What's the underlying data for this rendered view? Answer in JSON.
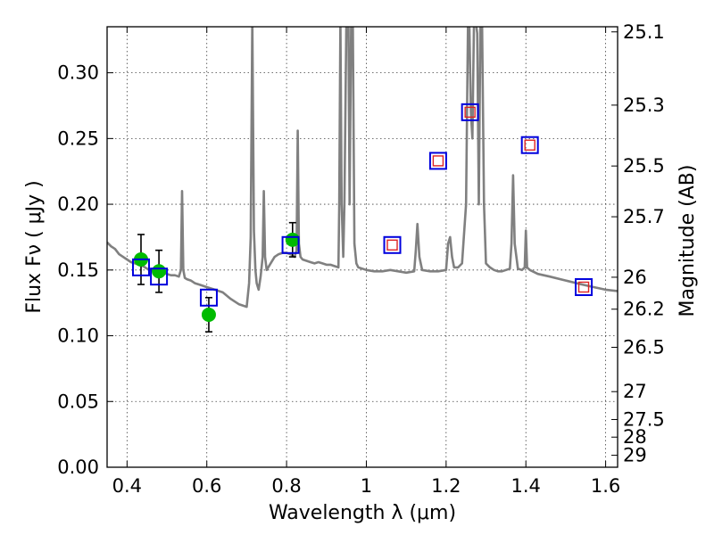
{
  "chart_data": {
    "type": "line",
    "title": "",
    "xlabel": "Wavelength  λ (μm)",
    "ylabel": "Flux  Fν  ( μJy )",
    "y2label": "Magnitude (AB)",
    "xlim": [
      0.35,
      1.63
    ],
    "ylim": [
      0.0,
      0.335
    ],
    "xticks": [
      0.4,
      0.6,
      0.8,
      1.0,
      1.2,
      1.4,
      1.6
    ],
    "xtick_labels": [
      "0.4",
      "0.6",
      "0.8",
      "1",
      "1.2",
      "1.4",
      "1.6"
    ],
    "yticks": [
      0.0,
      0.05,
      0.1,
      0.15,
      0.2,
      0.25,
      0.3
    ],
    "ytick_labels": [
      "0.00",
      "0.05",
      "0.10",
      "0.15",
      "0.20",
      "0.25",
      "0.30"
    ],
    "mag_ticks": [
      {
        "label": "25.1",
        "flux": 0.3311
      },
      {
        "label": "25.3",
        "flux": 0.2754
      },
      {
        "label": "25.5",
        "flux": 0.2291
      },
      {
        "label": "25.7",
        "flux": 0.1905
      },
      {
        "label": "26",
        "flux": 0.1445
      },
      {
        "label": "26.2",
        "flux": 0.1202
      },
      {
        "label": "26.5",
        "flux": 0.0912
      },
      {
        "label": "27",
        "flux": 0.0575
      },
      {
        "label": "27.5",
        "flux": 0.0363
      },
      {
        "label": "28",
        "flux": 0.0229
      },
      {
        "label": "29",
        "flux": 0.0091
      }
    ],
    "grid": true,
    "colors": {
      "model": "#808080",
      "observed": "#00bb00",
      "model_box": "#0000dd",
      "predicted_box": "#dd2222",
      "errorbar": "#000000"
    },
    "series": [
      {
        "name": "model spectrum",
        "kind": "line",
        "x": [
          0.35,
          0.36,
          0.37,
          0.38,
          0.39,
          0.4,
          0.41,
          0.42,
          0.43,
          0.44,
          0.45,
          0.46,
          0.47,
          0.48,
          0.49,
          0.5,
          0.51,
          0.52,
          0.53,
          0.535,
          0.538,
          0.541,
          0.545,
          0.55,
          0.56,
          0.57,
          0.58,
          0.59,
          0.6,
          0.62,
          0.64,
          0.66,
          0.68,
          0.7,
          0.706,
          0.71,
          0.714,
          0.718,
          0.722,
          0.725,
          0.73,
          0.735,
          0.74,
          0.743,
          0.746,
          0.75,
          0.76,
          0.77,
          0.78,
          0.79,
          0.8,
          0.81,
          0.82,
          0.825,
          0.828,
          0.831,
          0.835,
          0.84,
          0.85,
          0.86,
          0.87,
          0.88,
          0.89,
          0.9,
          0.91,
          0.92,
          0.93,
          0.932,
          0.935,
          0.938,
          0.942,
          0.945,
          0.95,
          0.955,
          0.958,
          0.962,
          0.966,
          0.97,
          0.975,
          0.98,
          1.0,
          1.02,
          1.04,
          1.06,
          1.08,
          1.1,
          1.12,
          1.124,
          1.128,
          1.133,
          1.14,
          1.16,
          1.18,
          1.2,
          1.205,
          1.21,
          1.215,
          1.22,
          1.23,
          1.24,
          1.25,
          1.255,
          1.258,
          1.262,
          1.266,
          1.27,
          1.274,
          1.278,
          1.282,
          1.286,
          1.29,
          1.295,
          1.3,
          1.31,
          1.32,
          1.33,
          1.34,
          1.35,
          1.36,
          1.364,
          1.368,
          1.372,
          1.38,
          1.39,
          1.397,
          1.4,
          1.403,
          1.41,
          1.43,
          1.46,
          1.5,
          1.54,
          1.57,
          1.6,
          1.63
        ],
        "y": [
          0.171,
          0.168,
          0.166,
          0.162,
          0.16,
          0.158,
          0.156,
          0.155,
          0.154,
          0.153,
          0.151,
          0.15,
          0.149,
          0.148,
          0.148,
          0.147,
          0.146,
          0.146,
          0.145,
          0.15,
          0.21,
          0.15,
          0.144,
          0.143,
          0.142,
          0.14,
          0.139,
          0.138,
          0.137,
          0.135,
          0.133,
          0.128,
          0.124,
          0.122,
          0.14,
          0.175,
          0.34,
          0.18,
          0.15,
          0.14,
          0.135,
          0.145,
          0.16,
          0.21,
          0.16,
          0.15,
          0.155,
          0.16,
          0.162,
          0.163,
          0.163,
          0.162,
          0.16,
          0.165,
          0.256,
          0.17,
          0.16,
          0.158,
          0.157,
          0.156,
          0.155,
          0.156,
          0.155,
          0.154,
          0.154,
          0.153,
          0.152,
          0.2,
          0.34,
          0.2,
          0.16,
          0.2,
          0.34,
          0.34,
          0.2,
          0.34,
          0.34,
          0.17,
          0.155,
          0.152,
          0.15,
          0.149,
          0.149,
          0.15,
          0.149,
          0.148,
          0.149,
          0.165,
          0.185,
          0.16,
          0.15,
          0.149,
          0.149,
          0.15,
          0.17,
          0.175,
          0.16,
          0.152,
          0.152,
          0.155,
          0.2,
          0.34,
          0.34,
          0.27,
          0.25,
          0.34,
          0.34,
          0.33,
          0.2,
          0.34,
          0.34,
          0.2,
          0.155,
          0.152,
          0.15,
          0.149,
          0.149,
          0.15,
          0.151,
          0.17,
          0.222,
          0.17,
          0.151,
          0.15,
          0.152,
          0.18,
          0.152,
          0.15,
          0.147,
          0.145,
          0.142,
          0.139,
          0.137,
          0.135,
          0.134
        ]
      },
      {
        "name": "observed fluxes",
        "kind": "scatter",
        "marker": "circle",
        "points": [
          {
            "x": 0.435,
            "y": 0.158,
            "err": 0.019
          },
          {
            "x": 0.48,
            "y": 0.149,
            "err": 0.016
          },
          {
            "x": 0.605,
            "y": 0.116,
            "err": 0.013
          },
          {
            "x": 0.815,
            "y": 0.173,
            "err": 0.013
          }
        ]
      },
      {
        "name": "model fluxes (observed bands)",
        "kind": "scatter",
        "marker": "square-open",
        "points": [
          {
            "x": 0.435,
            "y": 0.152
          },
          {
            "x": 0.48,
            "y": 0.145
          },
          {
            "x": 0.605,
            "y": 0.129
          },
          {
            "x": 0.81,
            "y": 0.169
          }
        ]
      },
      {
        "name": "predicted fluxes",
        "kind": "scatter",
        "marker": "square-open-double",
        "points": [
          {
            "x": 1.065,
            "y": 0.169
          },
          {
            "x": 1.18,
            "y": 0.233
          },
          {
            "x": 1.26,
            "y": 0.27
          },
          {
            "x": 1.41,
            "y": 0.245
          },
          {
            "x": 1.545,
            "y": 0.137
          }
        ]
      }
    ]
  }
}
